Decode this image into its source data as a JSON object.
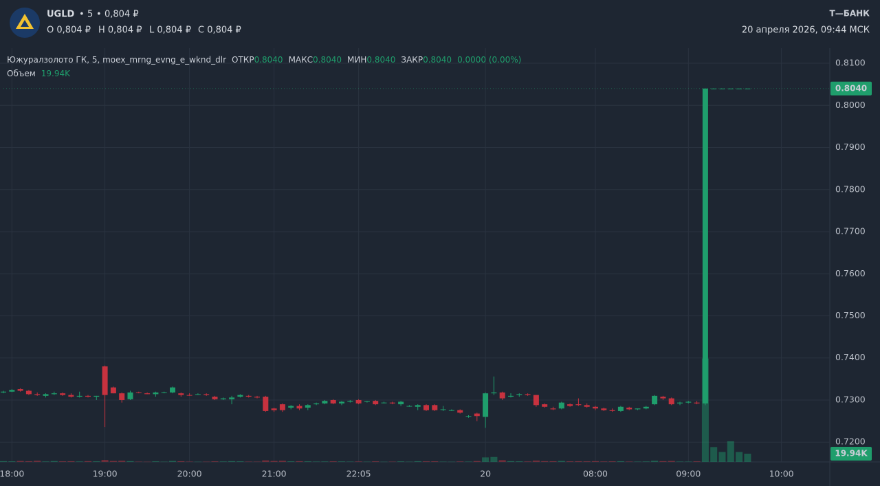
{
  "header": {
    "ticker": "UGLD",
    "interval": "5",
    "price": "0,804 ₽",
    "ohlc": [
      "O 0,804 ₽",
      "H 0,804 ₽",
      "L 0,804 ₽",
      "C 0,804 ₽"
    ],
    "brand": "Т—БАНК",
    "datetime": "20 апреля 2026, 09:44 МСК"
  },
  "chart_data": {
    "type": "candlestick",
    "legend_title": "Южуралзолото ГК, 5, moex_mrng_evng_e_wknd_dlr",
    "legend_fields": [
      {
        "label": "ОТКР",
        "value": "0.8040"
      },
      {
        "label": "МАКС",
        "value": "0.8040"
      },
      {
        "label": "МИН",
        "value": "0.8040"
      },
      {
        "label": "ЗАКР",
        "value": "0.8040"
      }
    ],
    "change": "0.0000 (0.00%)",
    "volume_label": "Объем",
    "last_price": {
      "value": 0.804,
      "label": "0.8040"
    },
    "last_volume": {
      "value": 19940,
      "label": "19.94K"
    },
    "up_color": "#1f9e6c",
    "down_color": "#c8323f",
    "grid": true,
    "ylim": [
      0.7153,
      0.8136
    ],
    "yticks": [
      {
        "value": 0.72,
        "label": "0.7200"
      },
      {
        "value": 0.73,
        "label": "0.7300"
      },
      {
        "value": 0.74,
        "label": "0.7400"
      },
      {
        "value": 0.75,
        "label": "0.7500"
      },
      {
        "value": 0.76,
        "label": "0.7600"
      },
      {
        "value": 0.77,
        "label": "0.7700"
      },
      {
        "value": 0.78,
        "label": "0.7800"
      },
      {
        "value": 0.79,
        "label": "0.7900"
      },
      {
        "value": 0.8,
        "label": "0.8000"
      },
      {
        "value": 0.81,
        "label": "0.8100"
      }
    ],
    "volume_ylim": [
      0,
      565000
    ],
    "categories": [
      null,
      "18:00",
      null,
      null,
      null,
      null,
      null,
      null,
      null,
      null,
      null,
      null,
      "19:00",
      null,
      null,
      null,
      null,
      null,
      null,
      null,
      null,
      null,
      "20:00",
      null,
      null,
      null,
      null,
      null,
      null,
      null,
      null,
      null,
      "21:00",
      null,
      null,
      null,
      null,
      null,
      null,
      null,
      null,
      null,
      "22:05",
      null,
      null,
      null,
      null,
      null,
      null,
      null,
      null,
      null,
      null,
      null,
      null,
      null,
      null,
      "20",
      null,
      null,
      null,
      null,
      null,
      null,
      null,
      null,
      null,
      null,
      null,
      null,
      "08:00",
      null,
      null,
      null,
      null,
      null,
      null,
      null,
      null,
      null,
      null,
      "09:00",
      null,
      null,
      null,
      null,
      null,
      null,
      null,
      null,
      null,
      null,
      "10:00"
    ],
    "ohlc": [
      [
        0.7318,
        0.7322,
        0.7316,
        0.732
      ],
      [
        0.732,
        0.7326,
        0.7319,
        0.7324
      ],
      [
        0.7326,
        0.7328,
        0.732,
        0.7322
      ],
      [
        0.7322,
        0.7324,
        0.7312,
        0.7314
      ],
      [
        0.7314,
        0.7318,
        0.731,
        0.7312
      ],
      [
        0.731,
        0.7316,
        0.7306,
        0.7314
      ],
      [
        0.7314,
        0.732,
        0.7312,
        0.7316
      ],
      [
        0.7316,
        0.7318,
        0.731,
        0.7312
      ],
      [
        0.7312,
        0.7316,
        0.7306,
        0.7308
      ],
      [
        0.7308,
        0.732,
        0.7306,
        0.731
      ],
      [
        0.731,
        0.7312,
        0.7306,
        0.7308
      ],
      [
        0.7308,
        0.731,
        0.73,
        0.731
      ],
      [
        0.738,
        0.7382,
        0.7236,
        0.7312
      ],
      [
        0.733,
        0.7332,
        0.7316,
        0.7316
      ],
      [
        0.7316,
        0.7318,
        0.7294,
        0.73
      ],
      [
        0.7302,
        0.7322,
        0.73,
        0.7318
      ],
      [
        0.7318,
        0.732,
        0.7316,
        0.7317
      ],
      [
        0.7316,
        0.7318,
        0.7314,
        0.7314
      ],
      [
        0.7314,
        0.732,
        0.7308,
        0.7318
      ],
      [
        0.7318,
        0.732,
        0.7316,
        0.7318
      ],
      [
        0.7318,
        0.7332,
        0.7316,
        0.733
      ],
      [
        0.7316,
        0.7318,
        0.7308,
        0.7312
      ],
      [
        0.7312,
        0.7316,
        0.731,
        0.7311
      ],
      [
        0.7314,
        0.7316,
        0.7312,
        0.7314
      ],
      [
        0.7314,
        0.7316,
        0.731,
        0.7312
      ],
      [
        0.7308,
        0.731,
        0.73,
        0.7302
      ],
      [
        0.7302,
        0.7306,
        0.73,
        0.7304
      ],
      [
        0.7302,
        0.731,
        0.729,
        0.7306
      ],
      [
        0.7308,
        0.7314,
        0.7306,
        0.7312
      ],
      [
        0.731,
        0.7312,
        0.7306,
        0.7308
      ],
      [
        0.7308,
        0.731,
        0.7304,
        0.7306
      ],
      [
        0.7308,
        0.731,
        0.7272,
        0.7274
      ],
      [
        0.728,
        0.7282,
        0.7272,
        0.7276
      ],
      [
        0.729,
        0.7292,
        0.7272,
        0.7276
      ],
      [
        0.7282,
        0.7288,
        0.7278,
        0.7286
      ],
      [
        0.7286,
        0.729,
        0.7276,
        0.728
      ],
      [
        0.7282,
        0.729,
        0.7276,
        0.7288
      ],
      [
        0.729,
        0.7294,
        0.7288,
        0.7292
      ],
      [
        0.7292,
        0.73,
        0.729,
        0.7298
      ],
      [
        0.73,
        0.7302,
        0.729,
        0.7292
      ],
      [
        0.7292,
        0.7298,
        0.7288,
        0.7296
      ],
      [
        0.7296,
        0.73,
        0.7294,
        0.7298
      ],
      [
        0.73,
        0.7302,
        0.729,
        0.7292
      ],
      [
        0.7296,
        0.7298,
        0.7294,
        0.7297
      ],
      [
        0.7298,
        0.73,
        0.7288,
        0.729
      ],
      [
        0.7294,
        0.7296,
        0.7292,
        0.7294
      ],
      [
        0.7294,
        0.7296,
        0.729,
        0.7292
      ],
      [
        0.729,
        0.7298,
        0.7286,
        0.7296
      ],
      [
        0.7286,
        0.7288,
        0.7284,
        0.7286
      ],
      [
        0.7284,
        0.729,
        0.7276,
        0.7288
      ],
      [
        0.7288,
        0.729,
        0.7274,
        0.7276
      ],
      [
        0.7288,
        0.729,
        0.7274,
        0.7276
      ],
      [
        0.7278,
        0.7286,
        0.7274,
        0.7278
      ],
      [
        0.7276,
        0.7278,
        0.7274,
        0.7276
      ],
      [
        0.7276,
        0.7278,
        0.7268,
        0.727
      ],
      [
        0.7262,
        0.7264,
        0.7258,
        0.7262
      ],
      [
        0.7268,
        0.727,
        0.725,
        0.7262
      ],
      [
        0.726,
        0.7318,
        0.7234,
        0.7316
      ],
      [
        0.7316,
        0.7356,
        0.7312,
        0.7318
      ],
      [
        0.7318,
        0.732,
        0.73,
        0.7304
      ],
      [
        0.7308,
        0.7316,
        0.7306,
        0.731
      ],
      [
        0.7312,
        0.7316,
        0.7308,
        0.7314
      ],
      [
        0.7314,
        0.7316,
        0.731,
        0.7312
      ],
      [
        0.7312,
        0.7312,
        0.7284,
        0.7288
      ],
      [
        0.729,
        0.7292,
        0.7282,
        0.7284
      ],
      [
        0.728,
        0.7284,
        0.7276,
        0.7278
      ],
      [
        0.728,
        0.7296,
        0.7278,
        0.7294
      ],
      [
        0.729,
        0.7292,
        0.7284,
        0.7286
      ],
      [
        0.729,
        0.7304,
        0.7286,
        0.7288
      ],
      [
        0.7288,
        0.7292,
        0.7282,
        0.7284
      ],
      [
        0.7284,
        0.7286,
        0.7276,
        0.728
      ],
      [
        0.728,
        0.7282,
        0.7274,
        0.7276
      ],
      [
        0.7276,
        0.728,
        0.7272,
        0.7274
      ],
      [
        0.7274,
        0.7286,
        0.7272,
        0.7284
      ],
      [
        0.7282,
        0.7284,
        0.7276,
        0.7278
      ],
      [
        0.7278,
        0.728,
        0.7276,
        0.728
      ],
      [
        0.728,
        0.7286,
        0.7278,
        0.7284
      ],
      [
        0.729,
        0.7312,
        0.7288,
        0.731
      ],
      [
        0.7308,
        0.731,
        0.73,
        0.7304
      ],
      [
        0.7304,
        0.7306,
        0.7288,
        0.729
      ],
      [
        0.7292,
        0.7296,
        0.7288,
        0.7294
      ],
      [
        0.7294,
        0.7298,
        0.7292,
        0.7296
      ],
      [
        0.7294,
        0.7298,
        0.729,
        0.7292
      ],
      [
        0.7292,
        0.804,
        0.7288,
        0.804
      ],
      [
        0.804,
        0.804,
        0.804,
        0.804
      ],
      [
        0.804,
        0.804,
        0.804,
        0.804
      ],
      [
        0.804,
        0.804,
        0.804,
        0.804
      ],
      [
        0.804,
        0.804,
        0.804,
        0.804
      ],
      [
        0.804,
        0.804,
        0.804,
        0.804
      ],
      null,
      null,
      null,
      null
    ],
    "volumes": [
      2000,
      1500,
      2500,
      1800,
      3000,
      1200,
      2200,
      1500,
      1800,
      1200,
      2000,
      1500,
      5000,
      2500,
      3000,
      2000,
      800,
      600,
      1500,
      700,
      2500,
      1800,
      900,
      600,
      700,
      1500,
      1200,
      2000,
      1500,
      900,
      800,
      4000,
      2500,
      3000,
      1500,
      1800,
      1500,
      1000,
      1200,
      1500,
      1300,
      900,
      1200,
      700,
      1500,
      600,
      800,
      1400,
      700,
      1800,
      1500,
      1600,
      800,
      600,
      1200,
      900,
      2200,
      11000,
      12000,
      4500,
      2000,
      1500,
      1200,
      3500,
      2000,
      1800,
      2500,
      1500,
      1800,
      1500,
      2000,
      1200,
      1500,
      1800,
      1000,
      900,
      1200,
      3000,
      2000,
      2500,
      1000,
      900,
      1500,
      250000,
      36000,
      24000,
      50000,
      24000,
      19940,
      null,
      null,
      null,
      null
    ]
  }
}
